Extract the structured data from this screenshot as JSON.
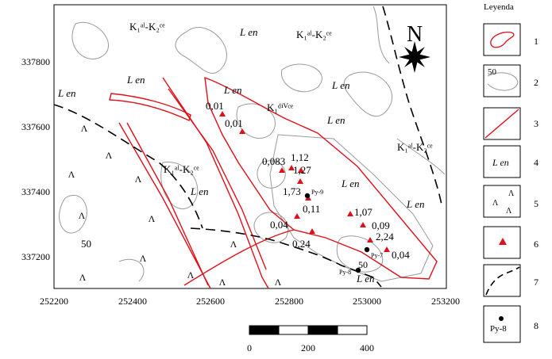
{
  "map": {
    "x_axis": {
      "ticks": [
        "252200",
        "252400",
        "252600",
        "252800",
        "253000",
        "253200"
      ]
    },
    "y_axis": {
      "ticks": [
        "337800",
        "337600",
        "337400",
        "337200"
      ]
    },
    "north_label": "N",
    "unit_labels": [
      "K₁ᵃˡ-K₂ᶜᵉ",
      "L en",
      "K₁ᵃˡ-K₂ᶜᵉ",
      "L en",
      "L en",
      "L en",
      "L en",
      "K₁ᵈⁱⱽᶜᵉ",
      "L en",
      "K₁ᵃˡ-K₂ᶜᵉ",
      "K₁ᵃˡ-K₂ᶜᵉ",
      "L en",
      "L en",
      "L en",
      "L en"
    ],
    "contour_label": "50",
    "sample_values": [
      "0,01",
      "0,01",
      "0,083",
      "1,12",
      "1,27",
      "1,73",
      "0,11",
      "1,07",
      "0,09",
      "0,04",
      "2,24",
      "0,04",
      "0,24"
    ],
    "wells": [
      "Py-9",
      "Py-7",
      "Py-8"
    ],
    "well_bottom_label": "50"
  },
  "scale_bar": {
    "labels": [
      "0",
      "200",
      "400"
    ]
  },
  "legend": {
    "title": "Leyenda",
    "items": [
      {
        "number": "1"
      },
      {
        "number": "2",
        "text": "50"
      },
      {
        "number": "3"
      },
      {
        "number": "4",
        "text": "L en"
      },
      {
        "number": "5",
        "text": "Λ"
      },
      {
        "number": "6"
      },
      {
        "number": "7"
      },
      {
        "number": "8",
        "text": "Py-8"
      }
    ]
  },
  "colors": {
    "accent": "#e0101a",
    "contour": "#9a9a9a",
    "dashed": "#000000"
  }
}
